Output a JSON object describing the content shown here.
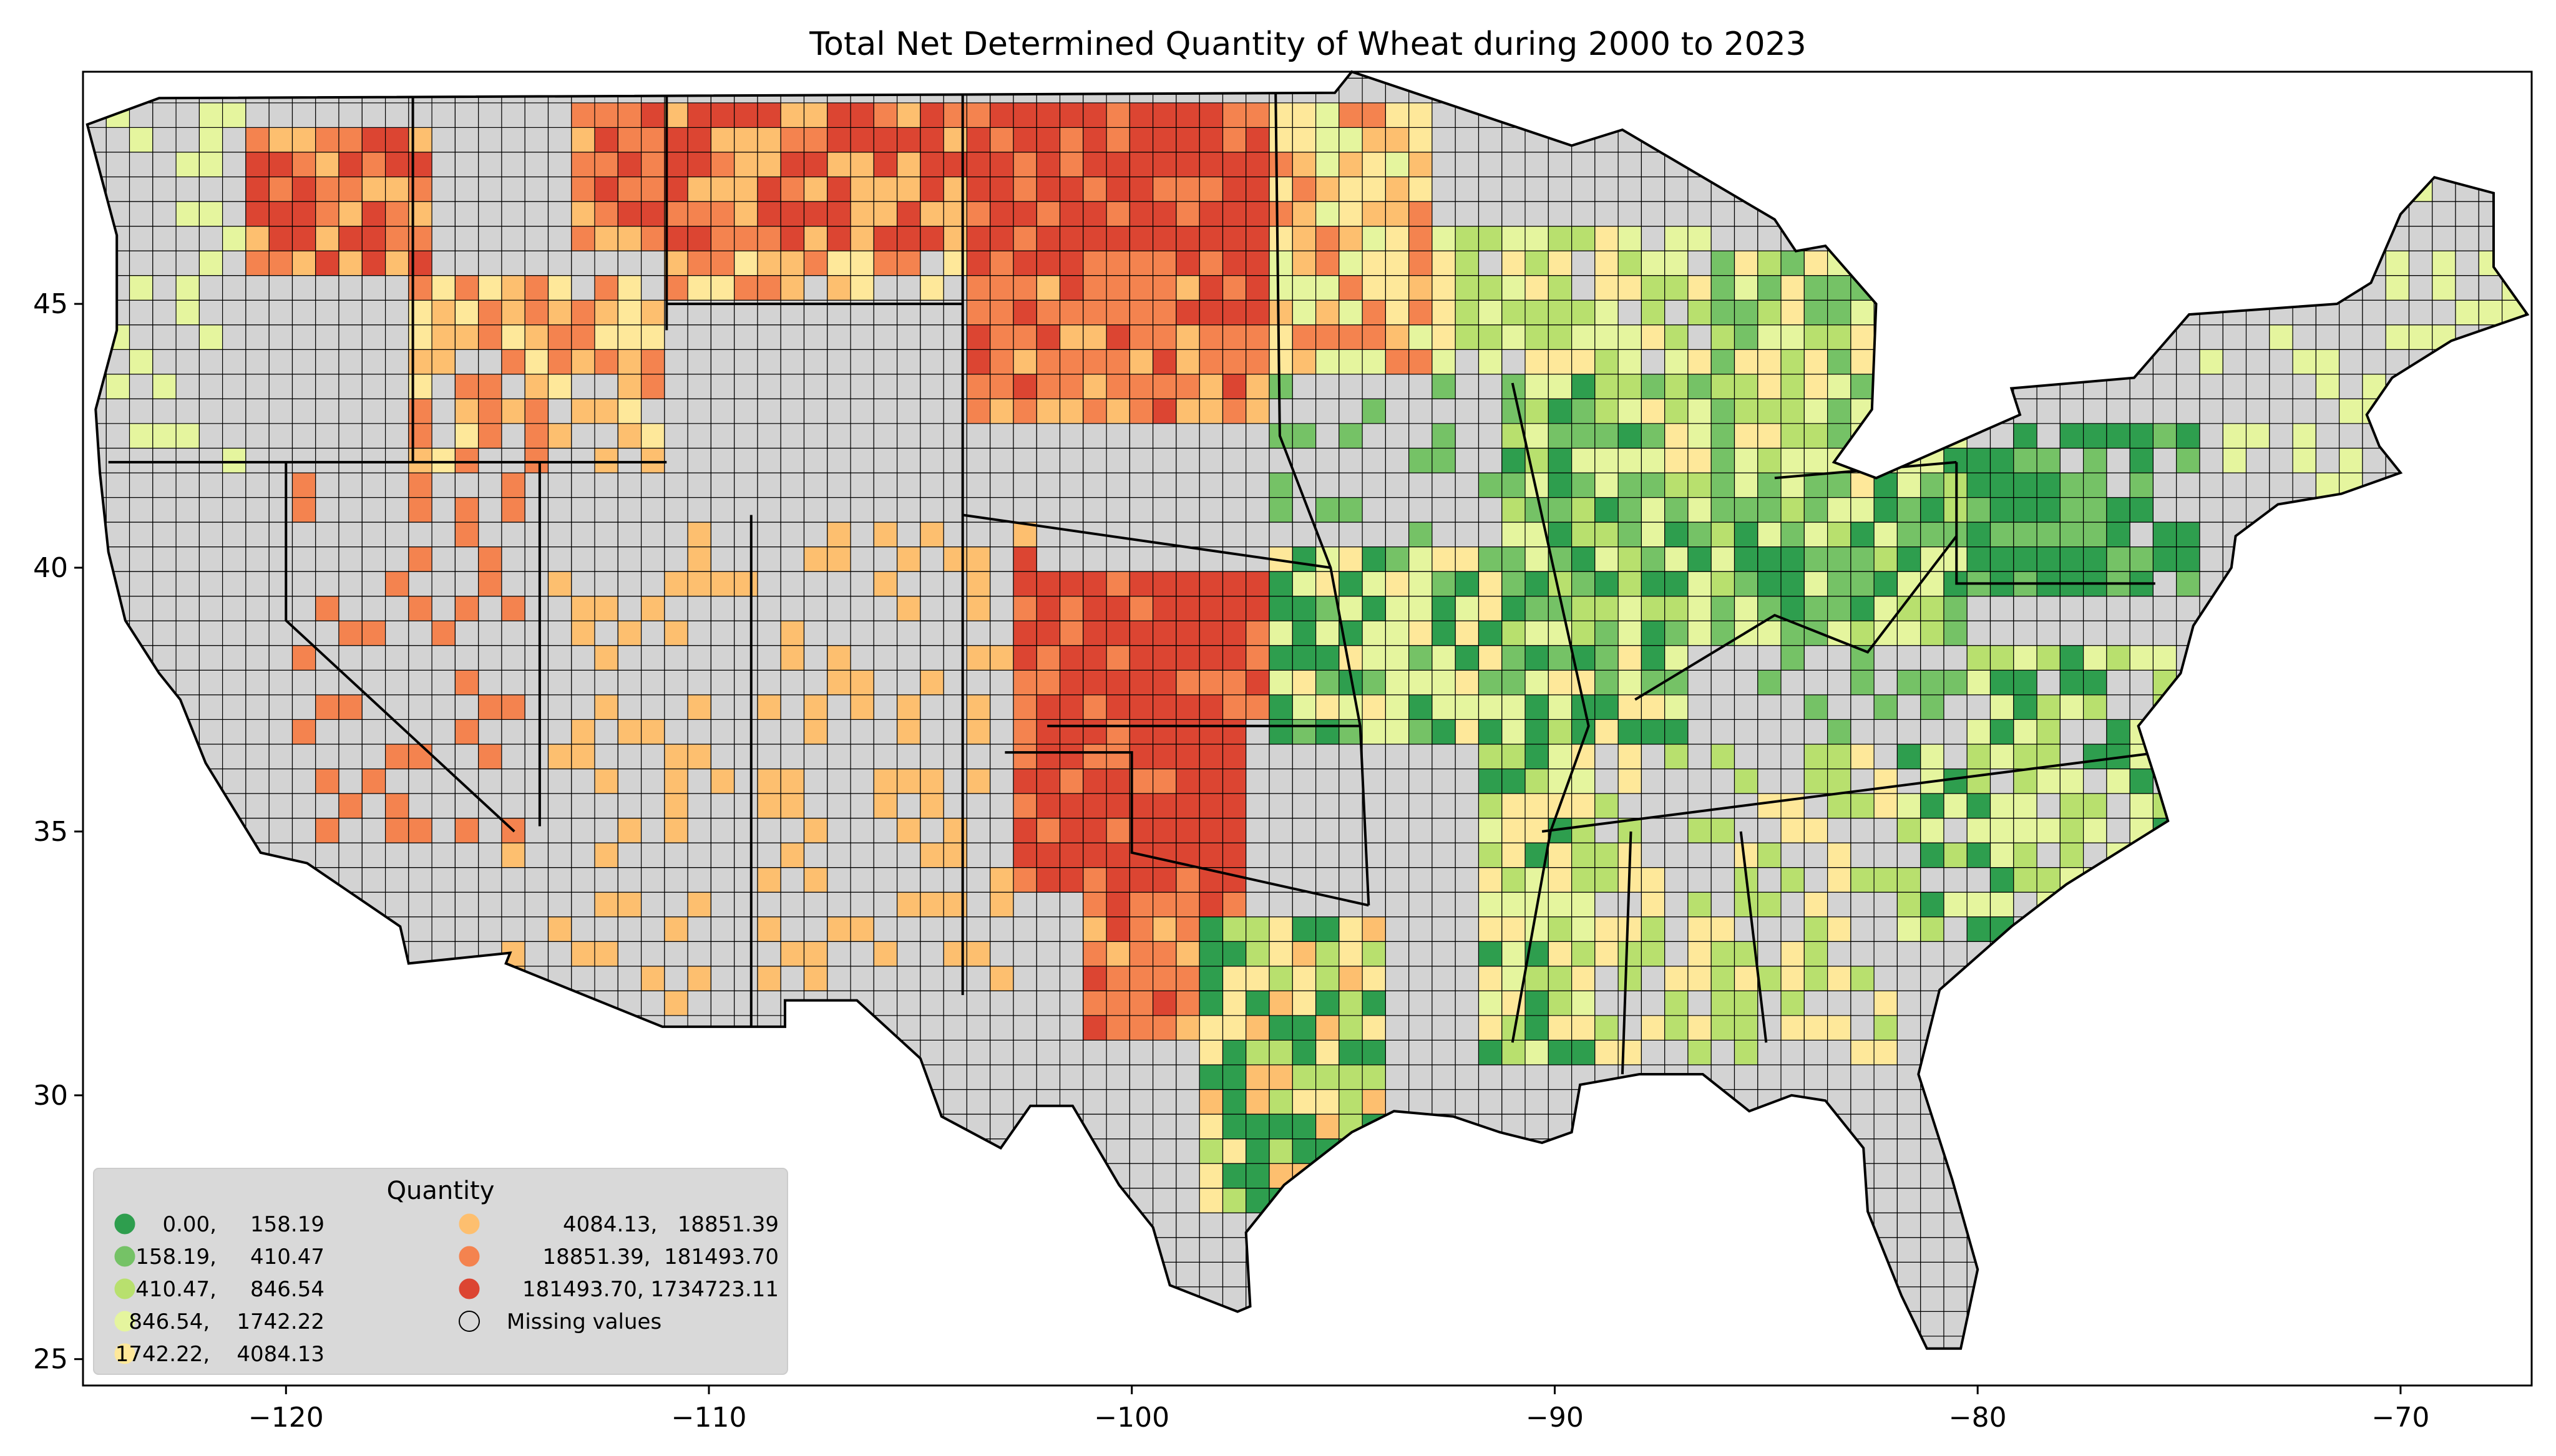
{
  "title": "Total Net Determined Quantity of Wheat during 2000 to 2023",
  "axes": {
    "x_ticks": [
      "−120",
      "−110",
      "−100",
      "−90",
      "−80",
      "−70"
    ],
    "x_tick_values": [
      -120,
      -110,
      -100,
      -90,
      -80,
      -70
    ],
    "y_ticks": [
      "25",
      "30",
      "35",
      "40",
      "45"
    ],
    "y_tick_values": [
      25,
      30,
      35,
      40,
      45
    ],
    "xlim": [
      -124.8,
      -66.9
    ],
    "ylim": [
      24.5,
      49.4
    ]
  },
  "legend": {
    "title": "Quantity",
    "placement": "lower-left",
    "items": [
      {
        "label": "0.00,     158.19",
        "color": "#2e9e4e"
      },
      {
        "label": "158.19,     410.47",
        "color": "#75c266"
      },
      {
        "label": "410.47,     846.54",
        "color": "#b8e06e"
      },
      {
        "label": "846.54,    1742.22",
        "color": "#e5f59e"
      },
      {
        "label": "1742.22,    4084.13",
        "color": "#fee89a"
      },
      {
        "label": "4084.13,   18851.39",
        "color": "#fdbf6f"
      },
      {
        "label": "18851.39,  181493.70",
        "color": "#f4834f"
      },
      {
        "label": "181493.70, 1734723.11",
        "color": "#dc4532"
      },
      {
        "label": "Missing values",
        "color": "#d3d3d3"
      }
    ]
  },
  "colors": {
    "missing": "#d3d3d3",
    "border": "#000000",
    "legend_bg": "#d9d9d9"
  }
}
